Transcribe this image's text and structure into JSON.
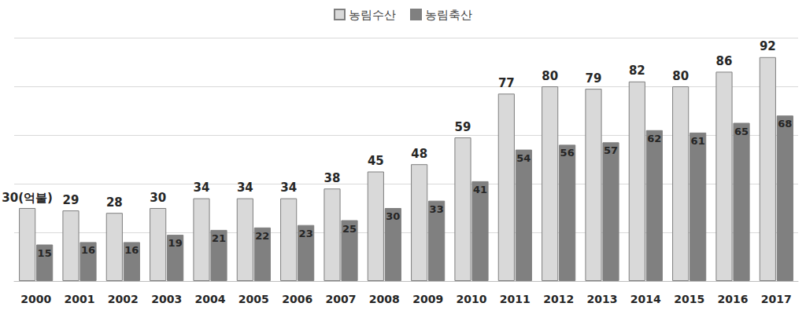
{
  "chart_data": {
    "type": "bar",
    "categories": [
      "2000",
      "2001",
      "2002",
      "2003",
      "2004",
      "2005",
      "2006",
      "2007",
      "2008",
      "2009",
      "2010",
      "2011",
      "2012",
      "2013",
      "2014",
      "2015",
      "2016",
      "2017"
    ],
    "series": [
      {
        "name": "농림수산",
        "color": "#d9d9d9",
        "values": [
          30,
          29,
          28,
          30,
          34,
          34,
          34,
          38,
          45,
          48,
          59,
          77,
          80,
          79,
          82,
          80,
          86,
          92
        ],
        "value_labels": [
          "30(억불)",
          "29",
          "28",
          "30",
          "34",
          "34",
          "34",
          "38",
          "45",
          "48",
          "59",
          "77",
          "80",
          "79",
          "82",
          "80",
          "86",
          "92"
        ]
      },
      {
        "name": "농림축산",
        "color": "#808080",
        "values": [
          15,
          16,
          16,
          19,
          21,
          22,
          23,
          25,
          30,
          33,
          41,
          54,
          56,
          57,
          62,
          61,
          65,
          68
        ]
      }
    ],
    "ylim": [
      0,
      100
    ],
    "yticks": [
      0,
      20,
      40,
      60,
      80,
      100
    ],
    "grid": true,
    "legend": "top",
    "data_labels": true,
    "tick_labels": "x"
  }
}
